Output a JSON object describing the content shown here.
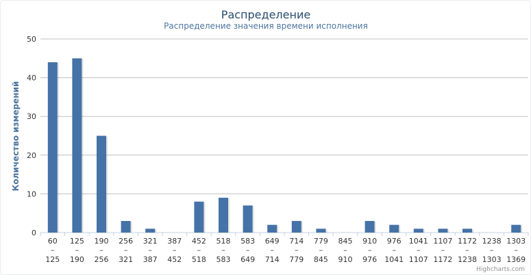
{
  "chart_data": {
    "type": "bar",
    "title": "Распределение",
    "subtitle": "Распределение значения времени исполнения",
    "xlabel": "",
    "ylabel": "Количество измерений",
    "ylim": [
      0,
      50
    ],
    "yticks": [
      "0",
      "10",
      "20",
      "30",
      "40",
      "50"
    ],
    "grid": true,
    "legend": "none",
    "bar_color": "#4572a7",
    "categories": [
      {
        "from": "60",
        "sep": "–",
        "to": "125"
      },
      {
        "from": "125",
        "sep": "–",
        "to": "190"
      },
      {
        "from": "190",
        "sep": "–",
        "to": "256"
      },
      {
        "from": "256",
        "sep": "–",
        "to": "321"
      },
      {
        "from": "321",
        "sep": "–",
        "to": "387"
      },
      {
        "from": "387",
        "sep": "–",
        "to": "452"
      },
      {
        "from": "452",
        "sep": "–",
        "to": "518"
      },
      {
        "from": "518",
        "sep": "–",
        "to": "583"
      },
      {
        "from": "583",
        "sep": "–",
        "to": "649"
      },
      {
        "from": "649",
        "sep": "–",
        "to": "714"
      },
      {
        "from": "714",
        "sep": "–",
        "to": "779"
      },
      {
        "from": "779",
        "sep": "–",
        "to": "845"
      },
      {
        "from": "845",
        "sep": "–",
        "to": "910"
      },
      {
        "from": "910",
        "sep": "–",
        "to": "976"
      },
      {
        "from": "976",
        "sep": "–",
        "to": "1041"
      },
      {
        "from": "1041",
        "sep": "–",
        "to": "1107"
      },
      {
        "from": "1107",
        "sep": "–",
        "to": "1172"
      },
      {
        "from": "1172",
        "sep": "–",
        "to": "1238"
      },
      {
        "from": "1238",
        "sep": "–",
        "to": "1303"
      },
      {
        "from": "1303",
        "sep": "–",
        "to": "1369"
      }
    ],
    "values": [
      44,
      45,
      25,
      3,
      1,
      0,
      8,
      9,
      7,
      2,
      3,
      1,
      0,
      3,
      2,
      1,
      1,
      1,
      0,
      2
    ]
  },
  "credits": "Highcharts.com"
}
